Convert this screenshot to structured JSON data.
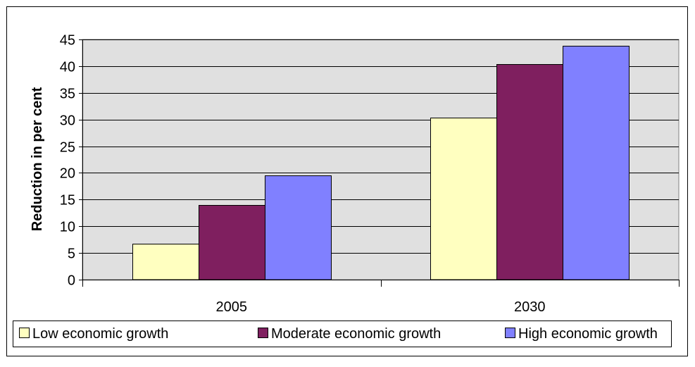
{
  "chart_data": {
    "type": "bar",
    "title": "",
    "xlabel": "",
    "ylabel": "Reduction in per cent",
    "categories": [
      "2005",
      "2030"
    ],
    "series": [
      {
        "name": "Low economic growth",
        "values": [
          6.7,
          30.4
        ],
        "color": "#ffffc0"
      },
      {
        "name": "Moderate economic growth",
        "values": [
          14.0,
          40.4
        ],
        "color": "#7f1f5f"
      },
      {
        "name": "High economic growth",
        "values": [
          19.5,
          43.8
        ],
        "color": "#8080ff"
      }
    ],
    "ylim": [
      0,
      45
    ],
    "ytick_step": 5,
    "yticks": [
      "0",
      "5",
      "10",
      "15",
      "20",
      "25",
      "30",
      "35",
      "40",
      "45"
    ],
    "grid": true,
    "plot_background": "#e0e0e0",
    "legend_position": "bottom"
  }
}
